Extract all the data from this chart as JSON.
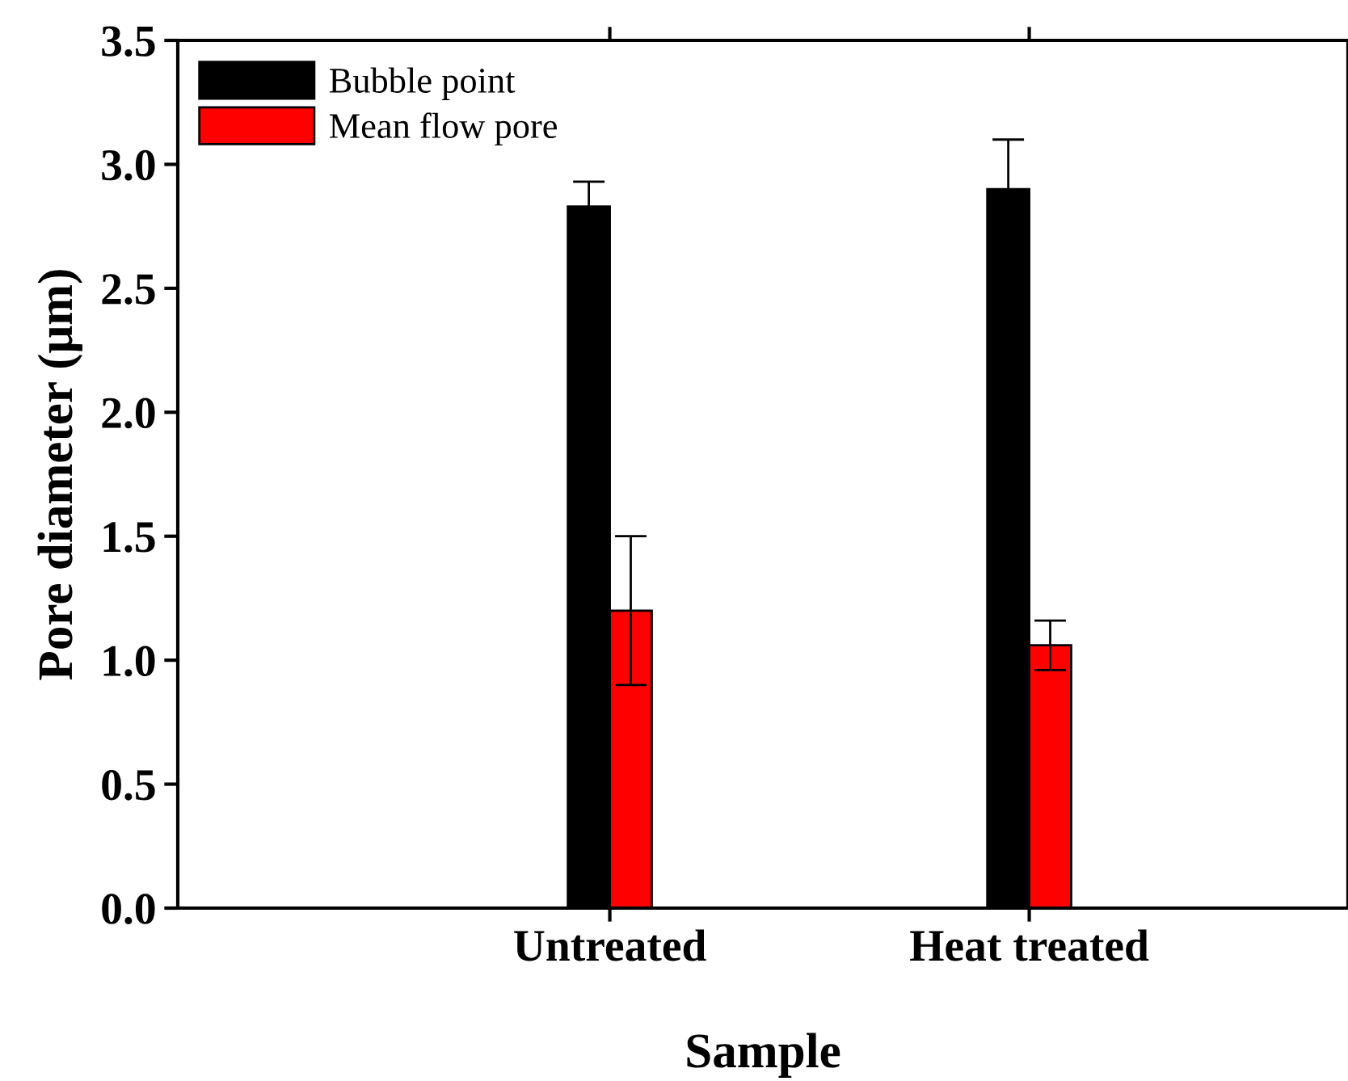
{
  "chart_data": {
    "type": "bar",
    "xlabel": "Sample",
    "ylabel": "Pore diameter (μm)",
    "categories": [
      "Untreated",
      "Heat treated"
    ],
    "series": [
      {
        "name": "Bubble point",
        "color": "#000000",
        "values": [
          2.83,
          2.9
        ],
        "errors": [
          0.1,
          0.2
        ]
      },
      {
        "name": "Mean flow pore",
        "color": "#ff0000",
        "values": [
          1.2,
          1.06
        ],
        "errors": [
          0.3,
          0.1
        ]
      }
    ],
    "ylim": [
      0,
      3.5
    ],
    "yticks": [
      {
        "value": 0,
        "label": "0.0"
      },
      {
        "value": 0.5,
        "label": "0.5"
      },
      {
        "value": 1,
        "label": "1.0"
      },
      {
        "value": 1.5,
        "label": "1.5"
      },
      {
        "value": 2,
        "label": "2.0"
      },
      {
        "value": 2.5,
        "label": "2.5"
      },
      {
        "value": 3,
        "label": "3.0"
      },
      {
        "value": 3.5,
        "label": "3.5"
      }
    ],
    "grid": false,
    "legend": "top left"
  }
}
